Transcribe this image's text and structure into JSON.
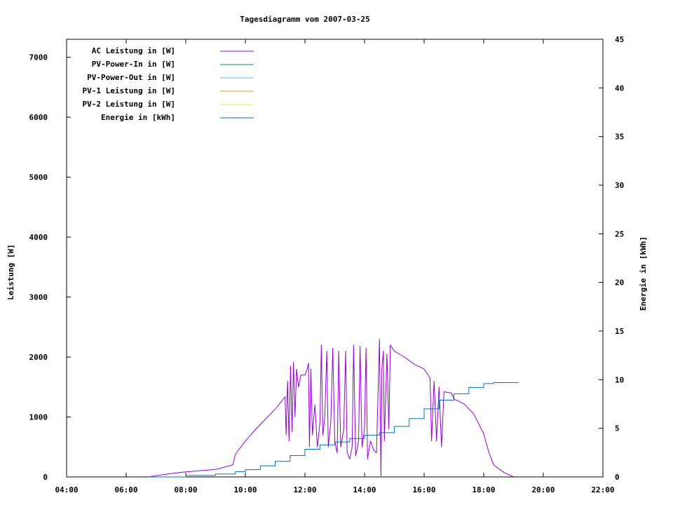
{
  "chart_data": {
    "type": "line",
    "title": "Tagesdiagramm vom 2007-03-25",
    "ylabel": "Leistung [W]",
    "y2label": "Energie in [kWh]",
    "xlim": [
      "04:00",
      "22:00"
    ],
    "ylim": [
      0,
      7300
    ],
    "y2lim": [
      0,
      45
    ],
    "x_ticks": [
      "04:00",
      "06:00",
      "08:00",
      "10:00",
      "12:00",
      "14:00",
      "16:00",
      "18:00",
      "20:00",
      "22:00"
    ],
    "y_ticks": [
      "0",
      "1000",
      "2000",
      "3000",
      "4000",
      "5000",
      "6000",
      "7000"
    ],
    "y2_ticks": [
      "0",
      "5",
      "10",
      "15",
      "20",
      "25",
      "30",
      "35",
      "40",
      "45"
    ],
    "legend_position": "top-left",
    "series": [
      {
        "name": "AC Leistung in [W]",
        "color": "#9400d3",
        "axis": "left",
        "points": [
          [
            "06:45",
            0
          ],
          [
            "07:00",
            20
          ],
          [
            "07:30",
            55
          ],
          [
            "08:00",
            85
          ],
          [
            "08:30",
            105
          ],
          [
            "09:00",
            125
          ],
          [
            "09:20",
            170
          ],
          [
            "09:35",
            200
          ],
          [
            "09:40",
            380
          ],
          [
            "10:00",
            600
          ],
          [
            "10:20",
            790
          ],
          [
            "10:40",
            960
          ],
          [
            "11:00",
            1130
          ],
          [
            "11:20",
            1340
          ],
          [
            "11:22",
            700
          ],
          [
            "11:25",
            1600
          ],
          [
            "11:28",
            600
          ],
          [
            "11:31",
            1850
          ],
          [
            "11:34",
            750
          ],
          [
            "11:37",
            1920
          ],
          [
            "11:40",
            1000
          ],
          [
            "11:43",
            1800
          ],
          [
            "11:47",
            1500
          ],
          [
            "11:52",
            1700
          ],
          [
            "12:00",
            1700
          ],
          [
            "12:05",
            1800
          ],
          [
            "12:07",
            1900
          ],
          [
            "12:09",
            500
          ],
          [
            "12:12",
            1800
          ],
          [
            "12:15",
            700
          ],
          [
            "12:20",
            1200
          ],
          [
            "12:25",
            500
          ],
          [
            "12:30",
            900
          ],
          [
            "12:33",
            2200
          ],
          [
            "12:36",
            700
          ],
          [
            "12:40",
            1000
          ],
          [
            "12:44",
            2100
          ],
          [
            "12:47",
            500
          ],
          [
            "12:52",
            900
          ],
          [
            "12:56",
            2150
          ],
          [
            "13:00",
            600
          ],
          [
            "13:05",
            400
          ],
          [
            "13:08",
            2100
          ],
          [
            "13:12",
            500
          ],
          [
            "13:18",
            800
          ],
          [
            "13:22",
            2100
          ],
          [
            "13:25",
            400
          ],
          [
            "13:30",
            300
          ],
          [
            "13:35",
            500
          ],
          [
            "13:38",
            2200
          ],
          [
            "13:42",
            350
          ],
          [
            "13:48",
            600
          ],
          [
            "13:51",
            2180
          ],
          [
            "13:55",
            500
          ],
          [
            "14:00",
            800
          ],
          [
            "14:03",
            2150
          ],
          [
            "14:06",
            300
          ],
          [
            "14:12",
            600
          ],
          [
            "14:18",
            450
          ],
          [
            "14:24",
            400
          ],
          [
            "14:30",
            2300
          ],
          [
            "14:33",
            0
          ],
          [
            "14:35",
            1800
          ],
          [
            "14:38",
            2100
          ],
          [
            "14:40",
            600
          ],
          [
            "14:45",
            2050
          ],
          [
            "14:49",
            800
          ],
          [
            "14:52",
            2200
          ],
          [
            "15:00",
            2100
          ],
          [
            "15:20",
            2000
          ],
          [
            "15:40",
            1880
          ],
          [
            "16:00",
            1800
          ],
          [
            "16:12",
            1650
          ],
          [
            "16:15",
            600
          ],
          [
            "16:20",
            1600
          ],
          [
            "16:25",
            600
          ],
          [
            "16:30",
            1500
          ],
          [
            "16:35",
            500
          ],
          [
            "16:40",
            1420
          ],
          [
            "16:55",
            1400
          ],
          [
            "17:00",
            1300
          ],
          [
            "17:20",
            1220
          ],
          [
            "17:40",
            1050
          ],
          [
            "18:00",
            720
          ],
          [
            "18:10",
            420
          ],
          [
            "18:20",
            200
          ],
          [
            "18:40",
            80
          ],
          [
            "19:00",
            0
          ]
        ]
      },
      {
        "name": "PV-Power-In in [W]",
        "color": "#009e73",
        "axis": "left",
        "points": []
      },
      {
        "name": "PV-Power-Out in [W]",
        "color": "#56b4e9",
        "axis": "left",
        "points": []
      },
      {
        "name": "PV-1 Leistung in [W]",
        "color": "#e69f00",
        "axis": "left",
        "points": []
      },
      {
        "name": "PV-2 Leistung in [W]",
        "color": "#f0e442",
        "axis": "left",
        "points": []
      },
      {
        "name": "Energie in [kWh]",
        "color": "#0072b2",
        "axis": "right",
        "points": [
          [
            "06:45",
            0
          ],
          [
            "08:00",
            0.15
          ],
          [
            "09:00",
            0.3
          ],
          [
            "09:40",
            0.55
          ],
          [
            "10:00",
            0.75
          ],
          [
            "10:30",
            1.15
          ],
          [
            "11:00",
            1.6
          ],
          [
            "11:30",
            2.2
          ],
          [
            "12:00",
            2.85
          ],
          [
            "12:30",
            3.3
          ],
          [
            "13:00",
            3.6
          ],
          [
            "13:30",
            3.95
          ],
          [
            "14:00",
            4.3
          ],
          [
            "14:30",
            4.55
          ],
          [
            "15:00",
            5.2
          ],
          [
            "15:30",
            6.0
          ],
          [
            "16:00",
            7.0
          ],
          [
            "16:30",
            7.9
          ],
          [
            "17:00",
            8.55
          ],
          [
            "17:30",
            9.2
          ],
          [
            "18:00",
            9.6
          ],
          [
            "18:20",
            9.7
          ],
          [
            "19:10",
            9.7
          ]
        ]
      }
    ]
  }
}
